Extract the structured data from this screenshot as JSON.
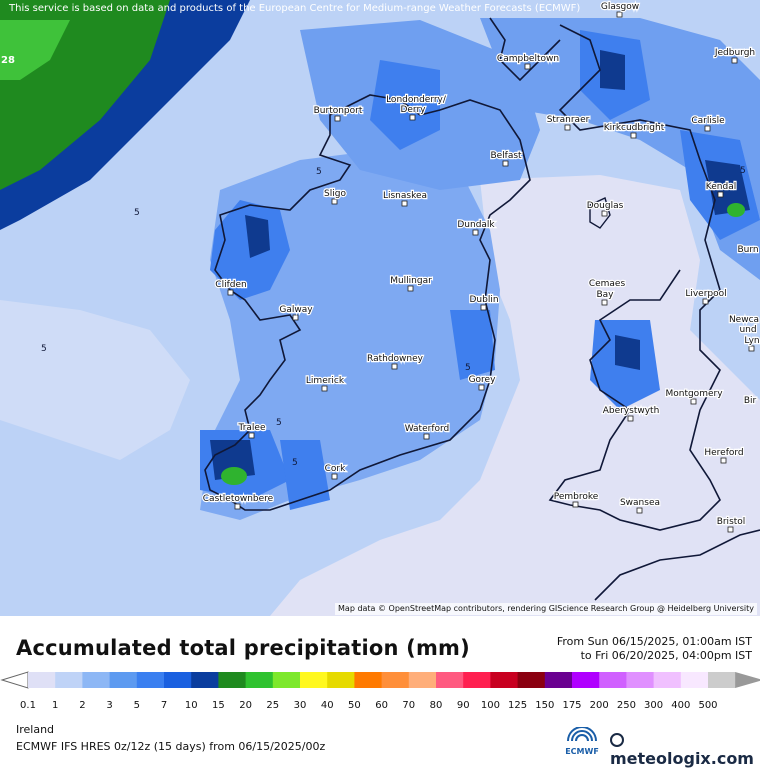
{
  "banner": "This service is based on data and products of the European Centre for Medium-range Weather Forecasts (ECMWF)",
  "attribution": "Map data © OpenStreetMap contributors, rendering GIScience Research Group @ Heidelberg University",
  "title": "Accumulated total precipitation (mm)",
  "date_from": "From Sun 06/15/2025, 01:00am IST",
  "date_to": "to Fri 06/20/2025, 04:00pm IST",
  "region": "Ireland",
  "model": "ECMWF IFS HRES 0z/12z (15 days) from 06/15/2025/00z",
  "brand": "meteologix.com",
  "ecmwf_label": "ECMWF",
  "edge_label": "28",
  "contour_labels": [
    "5",
    "5",
    "5",
    "5",
    "5",
    "5",
    "5"
  ],
  "legend": {
    "ticks": [
      "0.1",
      "1",
      "2",
      "3",
      "5",
      "7",
      "10",
      "15",
      "20",
      "25",
      "30",
      "40",
      "50",
      "60",
      "70",
      "80",
      "90",
      "100",
      "125",
      "150",
      "175",
      "200",
      "250",
      "300",
      "400",
      "500"
    ],
    "colors": [
      "#dfe0f6",
      "#bfd3f7",
      "#8db7f5",
      "#5d9af0",
      "#3a7ff0",
      "#1a60e0",
      "#0a3d9e",
      "#1f8a1f",
      "#2fc22f",
      "#7de82c",
      "#fff820",
      "#e6da00",
      "#ff7a00",
      "#ff8f3a",
      "#ffae7a",
      "#ff5a80",
      "#ff2050",
      "#c80020",
      "#8a0010",
      "#6a0090",
      "#b000ff",
      "#d060ff",
      "#e090ff",
      "#f0c0ff",
      "#f8e8ff",
      "#cccccc"
    ]
  },
  "cities": [
    {
      "name": "Glasgow"
    },
    {
      "name": "Jedburgh"
    },
    {
      "name": "Campbeltown"
    },
    {
      "name": "Burtonport"
    },
    {
      "name": "Londonderry/"
    },
    {
      "name": "Derry"
    },
    {
      "name": "Stranraer"
    },
    {
      "name": "Kirkcudbright"
    },
    {
      "name": "Carlisle"
    },
    {
      "name": "Belfast"
    },
    {
      "name": "Sligo"
    },
    {
      "name": "Lisnaskea"
    },
    {
      "name": "Kendal"
    },
    {
      "name": "Douglas"
    },
    {
      "name": "Dundalk"
    },
    {
      "name": "Burn"
    },
    {
      "name": "Clifden"
    },
    {
      "name": "Mullingar"
    },
    {
      "name": "Cemaes"
    },
    {
      "name": "Bay"
    },
    {
      "name": "Liverpool"
    },
    {
      "name": "Dublin"
    },
    {
      "name": "Galway"
    },
    {
      "name": "Newca"
    },
    {
      "name": "und"
    },
    {
      "name": "Lyn"
    },
    {
      "name": "Rathdowney"
    },
    {
      "name": "Limerick"
    },
    {
      "name": "Gorey"
    },
    {
      "name": "Montgomery"
    },
    {
      "name": "Aberystwyth"
    },
    {
      "name": "Bir"
    },
    {
      "name": "Tralee"
    },
    {
      "name": "Waterford"
    },
    {
      "name": "Hereford"
    },
    {
      "name": "Cork"
    },
    {
      "name": "Castletownbere"
    },
    {
      "name": "Pembroke"
    },
    {
      "name": "Swansea"
    },
    {
      "name": "Bristol"
    }
  ]
}
